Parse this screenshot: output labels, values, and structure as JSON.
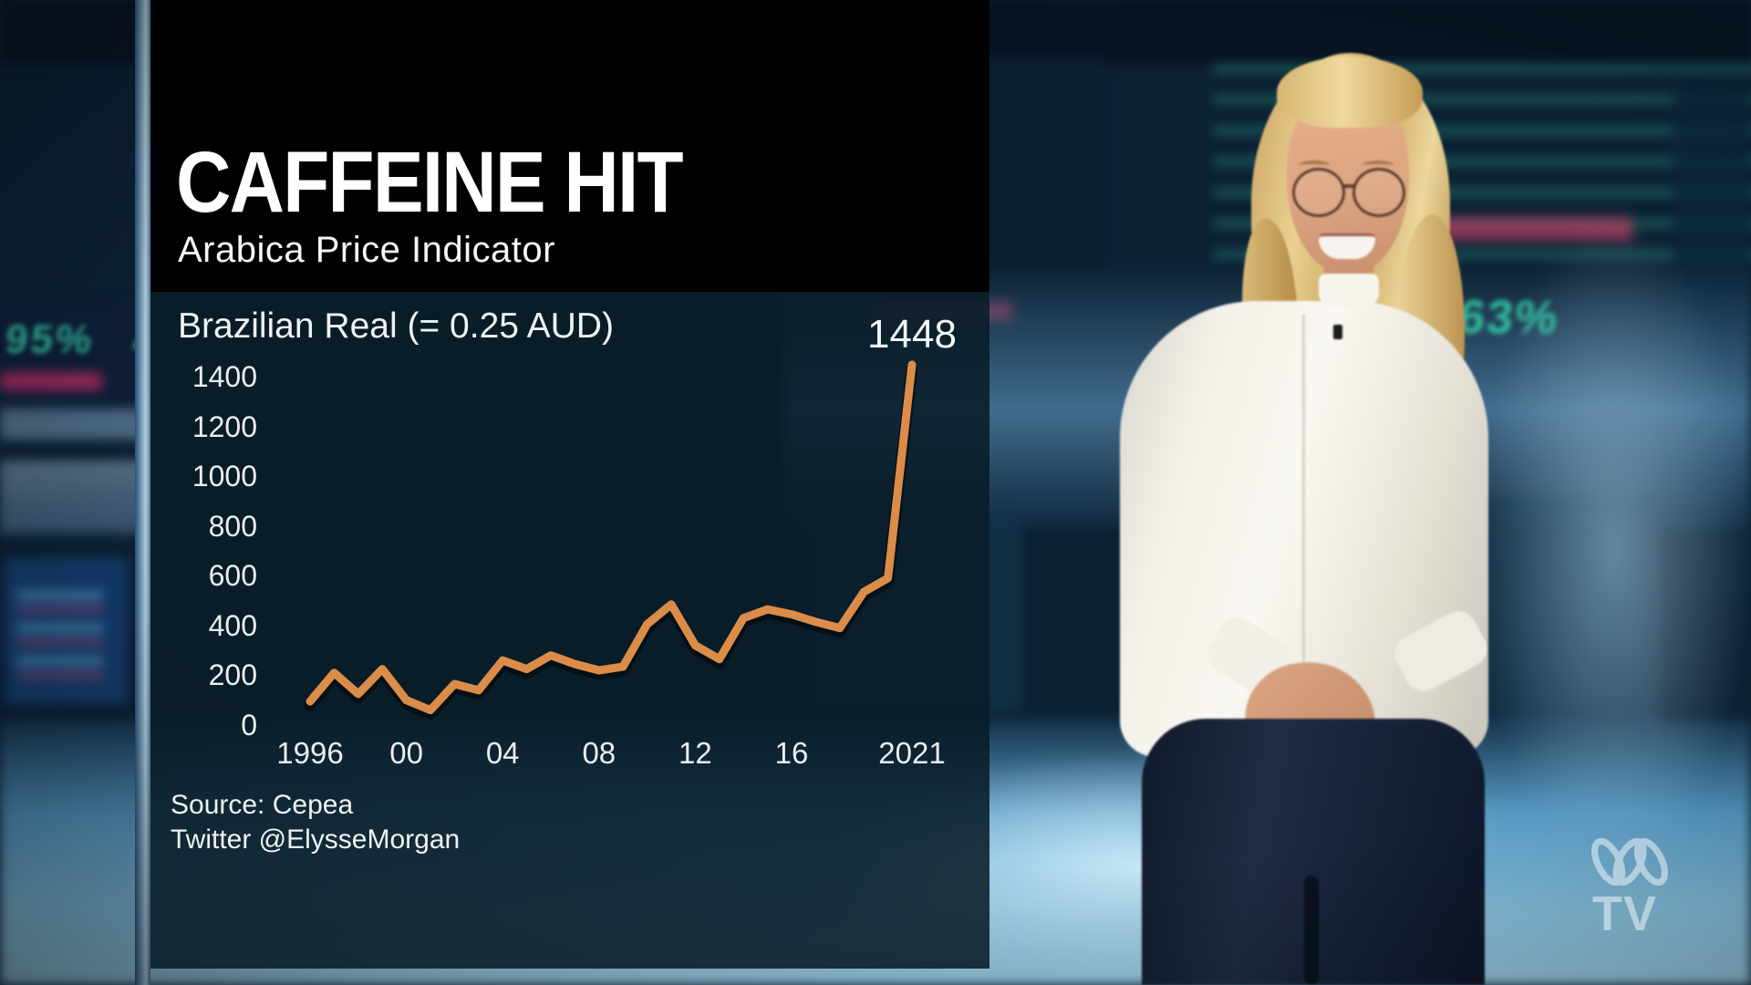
{
  "header": {
    "title": "CAFFEINE HIT",
    "subtitle": "Arabica Price Indicator"
  },
  "chart_panel": {
    "unit_label": "Brazilian Real (= 0.25 AUD)",
    "peak_annotation": "1448",
    "source_line_1": "Source: Cepea",
    "source_line_2": "Twitter @ElysseMorgan"
  },
  "chart_data": {
    "type": "line",
    "title": "CAFFEINE HIT",
    "subtitle": "Arabica Price Indicator",
    "ylabel": "Brazilian Real (= 0.25 AUD)",
    "source": "Source: Cepea",
    "attribution": "Twitter @ElysseMorgan",
    "x": [
      1996,
      1997,
      1998,
      1999,
      2000,
      2001,
      2002,
      2003,
      2004,
      2005,
      2006,
      2007,
      2008,
      2009,
      2010,
      2011,
      2012,
      2013,
      2014,
      2015,
      2016,
      2017,
      2018,
      2019,
      2020,
      2021
    ],
    "values": [
      95,
      210,
      125,
      225,
      100,
      60,
      165,
      140,
      260,
      225,
      280,
      245,
      220,
      235,
      405,
      485,
      320,
      265,
      430,
      465,
      445,
      415,
      390,
      535,
      590,
      1448
    ],
    "x_ticks": [
      {
        "year": 1996,
        "label": "1996"
      },
      {
        "year": 2000,
        "label": "00"
      },
      {
        "year": 2004,
        "label": "04"
      },
      {
        "year": 2008,
        "label": "08"
      },
      {
        "year": 2012,
        "label": "12"
      },
      {
        "year": 2016,
        "label": "16"
      },
      {
        "year": 2021,
        "label": "2021"
      }
    ],
    "y_ticks": [
      0,
      200,
      400,
      600,
      800,
      1000,
      1200,
      1400
    ],
    "ylim": [
      0,
      1500
    ],
    "xlim": [
      1996,
      2021
    ],
    "grid": false,
    "legend_position": "none",
    "line_color": "#DB8C49",
    "annotation": {
      "text": "1448",
      "year": 2021,
      "value": 1448
    }
  },
  "background": {
    "left_ticker": "95%",
    "left_ticker_arrow": "▲",
    "right_ticker": "7.63%",
    "accent_teal": "#3BE0B2",
    "accent_red": "#DE4A67"
  },
  "branding": {
    "network": "ABC",
    "logo_text": "TV",
    "logo_icon": "abc-lissajous-icon"
  },
  "colors": {
    "line": "#DB8C49",
    "panel_top": "#010101",
    "panel_chart": "rgba(9,29,40,0.88)",
    "text": "#F2F5F6"
  }
}
